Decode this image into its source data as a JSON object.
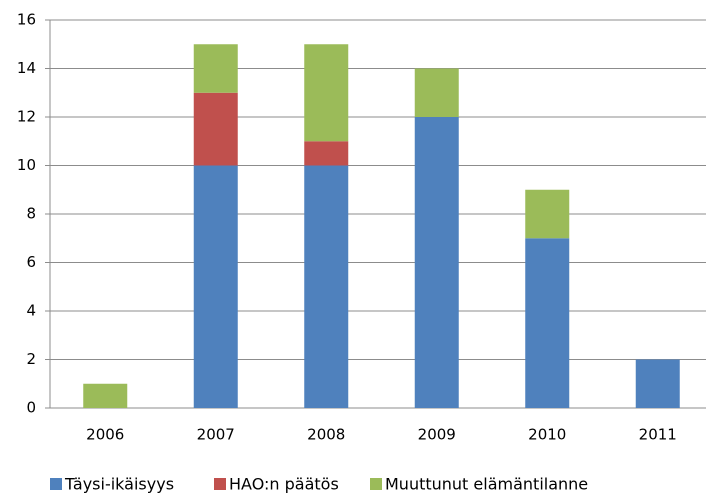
{
  "chart_data": {
    "type": "stacked_bar",
    "categories": [
      "2006",
      "2007",
      "2008",
      "2009",
      "2010",
      "2011"
    ],
    "series": [
      {
        "name": "Täysi-ikäisyys",
        "color": "#4f81bd",
        "values": [
          0,
          10,
          10,
          12,
          7,
          2
        ]
      },
      {
        "name": "HAO:n päätös",
        "color": "#c0504d",
        "values": [
          0,
          3,
          1,
          0,
          0,
          0
        ]
      },
      {
        "name": "Muuttunut elämäntilanne",
        "color": "#9bbb59",
        "values": [
          1,
          2,
          4,
          2,
          2,
          0
        ]
      }
    ],
    "ylim": [
      0,
      16
    ],
    "yticks": [
      0,
      2,
      4,
      6,
      8,
      10,
      12,
      14,
      16
    ],
    "grid": true,
    "legend": "bottom"
  }
}
